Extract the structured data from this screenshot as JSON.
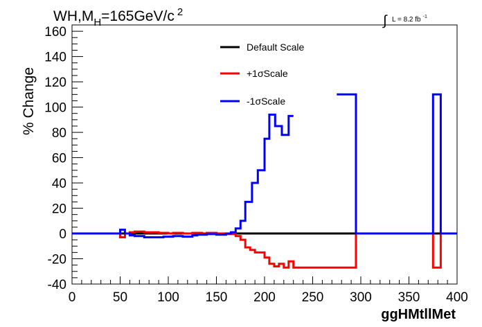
{
  "chart_data": {
    "type": "line",
    "title_main": "WH,M",
    "title_sub": "H",
    "title_rest": "=165GeV/c",
    "title_sup": "2",
    "lumi_text": "L = 8.2 fb",
    "lumi_sup": "-1",
    "ylabel": "% Change",
    "xlabel": "ggHMtllMet",
    "xlim": [
      0,
      400
    ],
    "ylim": [
      -40,
      165
    ],
    "xticks": [
      0,
      50,
      100,
      150,
      200,
      250,
      300,
      350,
      400
    ],
    "yticks": [
      -40,
      -20,
      0,
      20,
      40,
      60,
      80,
      100,
      120,
      140,
      160
    ],
    "grid": false,
    "legend_position": "top-center",
    "series": [
      {
        "name": "Default Scale",
        "color": "#000000",
        "points": [
          [
            0,
            0
          ],
          [
            400,
            0
          ]
        ]
      },
      {
        "name": "+1σScale",
        "color": "#ff0000",
        "points": [
          [
            0,
            0
          ],
          [
            50,
            0
          ],
          [
            50,
            -3
          ],
          [
            55,
            -3
          ],
          [
            55,
            0
          ],
          [
            60,
            0
          ],
          [
            60,
            1
          ],
          [
            65,
            1
          ],
          [
            65,
            1.5
          ],
          [
            75,
            1.5
          ],
          [
            75,
            1
          ],
          [
            90,
            1
          ],
          [
            90,
            0.5
          ],
          [
            100,
            0.5
          ],
          [
            100,
            0
          ],
          [
            105,
            0
          ],
          [
            105,
            0.5
          ],
          [
            115,
            0.5
          ],
          [
            115,
            0
          ],
          [
            125,
            0
          ],
          [
            125,
            0.5
          ],
          [
            135,
            0.5
          ],
          [
            135,
            0
          ],
          [
            140,
            0
          ],
          [
            140,
            0.5
          ],
          [
            150,
            0.5
          ],
          [
            150,
            0
          ],
          [
            160,
            0
          ],
          [
            160,
            -0.5
          ],
          [
            170,
            -0.5
          ],
          [
            170,
            -2
          ],
          [
            175,
            -2
          ],
          [
            175,
            -5
          ],
          [
            180,
            -5
          ],
          [
            180,
            -11
          ],
          [
            185,
            -11
          ],
          [
            185,
            -13
          ],
          [
            190,
            -13
          ],
          [
            190,
            -15
          ],
          [
            200,
            -15
          ],
          [
            200,
            -19
          ],
          [
            205,
            -19
          ],
          [
            205,
            -24
          ],
          [
            210,
            -24
          ],
          [
            210,
            -26
          ],
          [
            215,
            -26
          ],
          [
            215,
            -24
          ],
          [
            220,
            -24
          ],
          [
            220,
            -27
          ],
          [
            225,
            -27
          ],
          [
            225,
            -22
          ],
          [
            230,
            -22
          ],
          [
            230,
            -27
          ],
          [
            295,
            -27
          ],
          [
            295,
            0
          ],
          [
            375,
            0
          ],
          [
            375,
            -27
          ],
          [
            383,
            -27
          ],
          [
            383,
            0
          ],
          [
            400,
            0
          ]
        ]
      },
      {
        "name": "-1σScale",
        "color": "#0000ff",
        "segments": [
          [
            [
              0,
              0
            ],
            [
              50,
              0
            ],
            [
              50,
              3
            ],
            [
              55,
              3
            ],
            [
              55,
              0
            ],
            [
              60,
              0
            ],
            [
              60,
              -1.5
            ],
            [
              65,
              -1.5
            ],
            [
              65,
              -2
            ],
            [
              75,
              -2
            ],
            [
              75,
              -3
            ],
            [
              95,
              -3
            ],
            [
              95,
              -2.5
            ],
            [
              105,
              -2.5
            ],
            [
              105,
              -2
            ],
            [
              115,
              -2
            ],
            [
              115,
              -2.5
            ],
            [
              125,
              -2.5
            ],
            [
              125,
              -1.5
            ],
            [
              130,
              -1.5
            ],
            [
              130,
              -1
            ],
            [
              140,
              -1
            ],
            [
              140,
              -0.5
            ],
            [
              150,
              -0.5
            ],
            [
              150,
              -1
            ],
            [
              160,
              -1
            ],
            [
              160,
              0
            ],
            [
              165,
              0
            ],
            [
              165,
              1
            ],
            [
              170,
              1
            ],
            [
              170,
              4
            ],
            [
              175,
              4
            ],
            [
              175,
              10
            ],
            [
              180,
              10
            ],
            [
              180,
              25
            ],
            [
              187,
              25
            ],
            [
              187,
              40
            ],
            [
              193,
              40
            ],
            [
              193,
              50
            ],
            [
              200,
              50
            ],
            [
              200,
              75
            ],
            [
              205,
              75
            ],
            [
              205,
              94
            ],
            [
              211,
              94
            ],
            [
              211,
              85
            ],
            [
              218,
              85
            ],
            [
              218,
              78
            ],
            [
              225,
              78
            ],
            [
              225,
              93
            ],
            [
              230,
              93
            ]
          ],
          [
            [
              275,
              110
            ],
            [
              295,
              110
            ],
            [
              295,
              0
            ],
            [
              375,
              0
            ],
            [
              375,
              110
            ],
            [
              383,
              110
            ],
            [
              383,
              0
            ],
            [
              400,
              0
            ]
          ]
        ]
      }
    ]
  }
}
